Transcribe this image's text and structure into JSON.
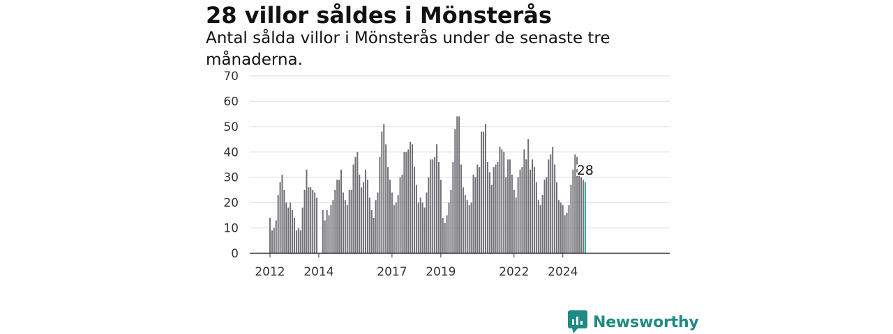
{
  "headline": "28 villor såldes i Mönsterås",
  "subtitle": "Antal sålda villor i Mönsterås under de senaste tre månaderna.",
  "brand": {
    "name": "Newsworthy",
    "icon": "newsworthy-logo-icon",
    "color": "#1f8a84"
  },
  "colors": {
    "bar": "#6f6f75",
    "highlight": "#1a9c94",
    "grid": "#d9d9d9",
    "axis": "#333333"
  },
  "chart_data": {
    "type": "bar",
    "title": "",
    "xlabel": "",
    "ylabel": "",
    "ylim": [
      0,
      70
    ],
    "yticks": [
      "0",
      "10",
      "20",
      "30",
      "40",
      "50",
      "60",
      "70"
    ],
    "xticks": [
      {
        "label": "2012",
        "index": 0
      },
      {
        "label": "2014",
        "index": 24
      },
      {
        "label": "2017",
        "index": 60
      },
      {
        "label": "2019",
        "index": 84
      },
      {
        "label": "2022",
        "index": 120
      },
      {
        "label": "2024",
        "index": 144
      }
    ],
    "values": [
      14,
      9,
      10,
      13,
      23,
      28,
      31,
      25,
      20,
      18,
      20,
      17,
      14,
      9,
      10,
      9,
      18,
      25,
      33,
      26,
      26,
      25,
      24,
      22,
      0,
      0,
      17,
      13,
      17,
      15,
      19,
      21,
      25,
      29,
      29,
      33,
      24,
      21,
      19,
      25,
      25,
      35,
      38,
      40,
      31,
      26,
      28,
      33,
      29,
      22,
      17,
      14,
      21,
      24,
      38,
      48,
      51,
      43,
      34,
      29,
      24,
      19,
      20,
      23,
      30,
      31,
      40,
      40,
      41,
      44,
      43,
      34,
      27,
      20,
      22,
      20,
      18,
      24,
      30,
      37,
      37,
      38,
      43,
      36,
      29,
      14,
      12,
      15,
      20,
      25,
      36,
      49,
      54,
      54,
      35,
      26,
      23,
      21,
      19,
      20,
      31,
      30,
      35,
      34,
      48,
      48,
      51,
      36,
      32,
      27,
      34,
      35,
      36,
      42,
      41,
      40,
      30,
      37,
      37,
      31,
      25,
      22,
      30,
      33,
      34,
      41,
      37,
      45,
      33,
      37,
      34,
      28,
      21,
      19,
      23,
      29,
      30,
      37,
      39,
      42,
      35,
      28,
      21,
      20,
      19,
      15,
      16,
      19,
      27,
      33,
      39,
      38,
      31,
      30,
      29,
      28
    ],
    "highlight_index": 155,
    "annotations": [
      {
        "index": 155,
        "text": "28"
      }
    ]
  }
}
